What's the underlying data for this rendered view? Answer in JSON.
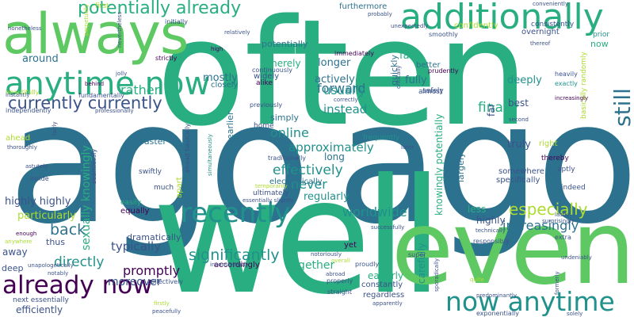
{
  "palette": {
    "dark_purple": "#440154",
    "deep_blue": "#3b528b",
    "teal_blue": "#2c728e",
    "teal": "#21918c",
    "sea_green": "#28ae80",
    "green": "#5ec962",
    "lime": "#addc30",
    "yellow": "#d5e21a"
  },
  "words": [
    {
      "text": "often",
      "color": "#28ae80"
    },
    {
      "text": "ago",
      "color": "#2c728e"
    },
    {
      "text": "ago",
      "color": "#2c728e"
    },
    {
      "text": "well",
      "color": "#28ae80"
    },
    {
      "text": "even",
      "color": "#5ec962"
    },
    {
      "text": "always",
      "color": "#5ec962"
    },
    {
      "text": "additionally",
      "color": "#28ae80"
    },
    {
      "text": "anytime now",
      "color": "#28ae80"
    },
    {
      "text": "recently",
      "color": "#21918c"
    },
    {
      "text": "now anytime",
      "color": "#21918c"
    },
    {
      "text": "already now",
      "color": "#440154"
    },
    {
      "text": "potentially already",
      "color": "#28ae80"
    },
    {
      "text": "currently currently",
      "color": "#3b528b"
    },
    {
      "text": "still",
      "color": "#2c728e"
    },
    {
      "text": "significantly",
      "color": "#21918c"
    },
    {
      "text": "especially",
      "color": "#addc30"
    },
    {
      "text": "increasingly",
      "color": "#2c728e"
    },
    {
      "text": "back",
      "color": "#2c728e"
    },
    {
      "text": "effectively",
      "color": "#21918c"
    },
    {
      "text": "finally",
      "color": "#28ae80"
    },
    {
      "text": "directly",
      "color": "#21918c"
    },
    {
      "text": "worldwide",
      "color": "#21918c"
    },
    {
      "text": "approximately",
      "color": "#21918c"
    },
    {
      "text": "online",
      "color": "#21918c"
    },
    {
      "text": "forward",
      "color": "#2c728e"
    },
    {
      "text": "rather",
      "color": "#28ae80"
    },
    {
      "text": "never",
      "color": "#21918c"
    },
    {
      "text": "instead",
      "color": "#21918c"
    },
    {
      "text": "usually",
      "color": "#21918c"
    },
    {
      "text": "actively",
      "color": "#2c728e"
    },
    {
      "text": "longer",
      "color": "#2c728e"
    },
    {
      "text": "fully",
      "color": "#2c728e"
    },
    {
      "text": "fast",
      "color": "#28ae80"
    },
    {
      "text": "promptly",
      "color": "#440154"
    },
    {
      "text": "typically",
      "color": "#3b528b"
    },
    {
      "text": "moreover",
      "color": "#3b528b"
    },
    {
      "text": "together",
      "color": "#28ae80"
    },
    {
      "text": "regularly",
      "color": "#21918c"
    },
    {
      "text": "particularly",
      "color": "#addc30"
    },
    {
      "text": "highly highly",
      "color": "#3b528b"
    },
    {
      "text": "around",
      "color": "#2c728e"
    },
    {
      "text": "mostly",
      "color": "#2c728e"
    },
    {
      "text": "merely",
      "color": "#28ae80"
    },
    {
      "text": "sexually knowingly",
      "color": "#28ae80"
    },
    {
      "text": "knowingly potentially",
      "color": "#28ae80"
    },
    {
      "text": "truly",
      "color": "#3b528b"
    },
    {
      "text": "best",
      "color": "#3b528b"
    },
    {
      "text": "far",
      "color": "#3b528b"
    },
    {
      "text": "eagerly",
      "color": "#28ae80"
    },
    {
      "text": "carefully",
      "color": "#21918c"
    },
    {
      "text": "highly",
      "color": "#3b528b"
    },
    {
      "text": "less",
      "color": "#28ae80"
    },
    {
      "text": "dramatically",
      "color": "#3b528b"
    },
    {
      "text": "efficiently",
      "color": "#3b528b"
    },
    {
      "text": "next essentially",
      "color": "#3b528b"
    },
    {
      "text": "away",
      "color": "#3b528b"
    },
    {
      "text": "deep",
      "color": "#3b528b"
    },
    {
      "text": "thus",
      "color": "#3b528b"
    },
    {
      "text": "simply",
      "color": "#2c728e"
    },
    {
      "text": "long",
      "color": "#2c728e"
    },
    {
      "text": "faster",
      "color": "#2c728e"
    },
    {
      "text": "earlier",
      "color": "#2c728e"
    },
    {
      "text": "ahead",
      "color": "#addc30"
    },
    {
      "text": "closely",
      "color": "#2c728e"
    },
    {
      "text": "widely",
      "color": "#3b528b"
    },
    {
      "text": "alike",
      "color": "#440154"
    },
    {
      "text": "quickly",
      "color": "#2c728e"
    },
    {
      "text": "deeply",
      "color": "#21918c"
    },
    {
      "text": "now",
      "color": "#28ae80"
    },
    {
      "text": "potentially",
      "color": "#2c728e"
    },
    {
      "text": "overnight",
      "color": "#3b528b"
    },
    {
      "text": "furthermore",
      "color": "#2c728e"
    },
    {
      "text": "confidently",
      "color": "#addc30"
    },
    {
      "text": "consistently",
      "color": "#3b528b"
    },
    {
      "text": "immediately",
      "color": "#440154"
    },
    {
      "text": "continuously",
      "color": "#3b528b"
    },
    {
      "text": "electronically",
      "color": "#2c728e"
    },
    {
      "text": "frequently",
      "color": "#21918c"
    },
    {
      "text": "yet",
      "color": "#440154"
    },
    {
      "text": "constantly",
      "color": "#3b528b"
    },
    {
      "text": "regardless",
      "color": "#3b528b"
    },
    {
      "text": "easily",
      "color": "#28ae80"
    },
    {
      "text": "equally",
      "color": "#440154"
    },
    {
      "text": "much",
      "color": "#3b528b"
    },
    {
      "text": "swiftly",
      "color": "#3b528b"
    },
    {
      "text": "apart",
      "color": "#addc30"
    },
    {
      "text": "ultimately",
      "color": "#3b528b"
    },
    {
      "text": "accordingly",
      "color": "#440154"
    },
    {
      "text": "collectively",
      "color": "#3b528b"
    },
    {
      "text": "somewhere",
      "color": "#3b528b"
    },
    {
      "text": "specifically",
      "color": "#3b528b"
    },
    {
      "text": "thereby",
      "color": "#440154"
    },
    {
      "text": "aptly",
      "color": "#3b528b"
    },
    {
      "text": "indeed",
      "color": "#3b528b"
    },
    {
      "text": "largely",
      "color": "#2c728e"
    },
    {
      "text": "right",
      "color": "#addc30"
    },
    {
      "text": "previously",
      "color": "#3b528b"
    },
    {
      "text": "home",
      "color": "#3b528b"
    },
    {
      "text": "correctly",
      "color": "#3b528b"
    },
    {
      "text": "almost",
      "color": "#3b528b"
    },
    {
      "text": "better",
      "color": "#2c728e"
    },
    {
      "text": "safely",
      "color": "#3b528b"
    },
    {
      "text": "prudently",
      "color": "#440154"
    },
    {
      "text": "heavily",
      "color": "#3b528b"
    },
    {
      "text": "exactly",
      "color": "#21918c"
    },
    {
      "text": "smoothly",
      "color": "#3b528b"
    },
    {
      "text": "prior",
      "color": "#21918c"
    },
    {
      "text": "basically randomly",
      "color": "#addc30"
    },
    {
      "text": "strictly",
      "color": "#440154"
    },
    {
      "text": "fundamentally",
      "color": "#3b528b"
    },
    {
      "text": "initially",
      "color": "#3b528b"
    },
    {
      "text": "beautifully",
      "color": "#addc30"
    },
    {
      "text": "instantly",
      "color": "#3b528b"
    },
    {
      "text": "independently",
      "color": "#3b528b"
    },
    {
      "text": "professionally",
      "color": "#3b528b"
    },
    {
      "text": "behind",
      "color": "#440154"
    },
    {
      "text": "thoroughly",
      "color": "#3b528b"
    },
    {
      "text": "astutely",
      "color": "#3b528b"
    },
    {
      "text": "seamlessly",
      "color": "#3b528b"
    },
    {
      "text": "inside",
      "color": "#3b528b"
    },
    {
      "text": "enough",
      "color": "#440154"
    },
    {
      "text": "anywhere",
      "color": "#addc30"
    },
    {
      "text": "notably",
      "color": "#3b528b"
    },
    {
      "text": "unapologetically",
      "color": "#3b528b"
    },
    {
      "text": "traditionally",
      "color": "#3b528b"
    },
    {
      "text": "ahead basically",
      "color": "#3b528b"
    },
    {
      "text": "simultaneously",
      "color": "#21918c"
    },
    {
      "text": "notoriously",
      "color": "#3b528b"
    },
    {
      "text": "proudly",
      "color": "#3b528b"
    },
    {
      "text": "successfully",
      "color": "#3b528b"
    },
    {
      "text": "straight",
      "color": "#3b528b"
    },
    {
      "text": "properly",
      "color": "#3b528b"
    },
    {
      "text": "apparently",
      "color": "#3b528b"
    },
    {
      "text": "super",
      "color": "#3b528b"
    },
    {
      "text": "later",
      "color": "#3b528b"
    },
    {
      "text": "responsibly",
      "color": "#3b528b"
    },
    {
      "text": "technically",
      "color": "#3b528b"
    },
    {
      "text": "surprisingly",
      "color": "#3b528b"
    },
    {
      "text": "lastly",
      "color": "#3b528b"
    },
    {
      "text": "extra",
      "color": "#3b528b"
    },
    {
      "text": "undeniably",
      "color": "#3b528b"
    },
    {
      "text": "solely",
      "color": "#3b528b"
    },
    {
      "text": "formerly",
      "color": "#3b528b"
    },
    {
      "text": "exponentially",
      "color": "#3b528b"
    },
    {
      "text": "predominantly",
      "color": "#3b528b"
    },
    {
      "text": "sporadically",
      "color": "#3b528b"
    },
    {
      "text": "quite",
      "color": "#addc30"
    },
    {
      "text": "inconsistently",
      "color": "#3b528b"
    },
    {
      "text": "overall",
      "color": "#addc30"
    },
    {
      "text": "peacefully",
      "color": "#3b528b"
    },
    {
      "text": "firstly",
      "color": "#addc30"
    },
    {
      "text": "first",
      "color": "#addc30"
    },
    {
      "text": "perpetually",
      "color": "#addc30"
    },
    {
      "text": "nonetheless",
      "color": "#3b528b"
    },
    {
      "text": "nevertheless",
      "color": "#3b528b"
    },
    {
      "text": "jolly",
      "color": "#3b528b"
    },
    {
      "text": "relatively",
      "color": "#3b528b"
    },
    {
      "text": "high",
      "color": "#440154"
    },
    {
      "text": "probably",
      "color": "#3b528b"
    },
    {
      "text": "unexpectedly",
      "color": "#3b528b"
    },
    {
      "text": "conveniently",
      "color": "#3b528b"
    },
    {
      "text": "thereof",
      "color": "#3b528b"
    },
    {
      "text": "critically",
      "color": "#3b528b"
    },
    {
      "text": "second",
      "color": "#3b528b"
    },
    {
      "text": "fairly",
      "color": "#3b528b"
    },
    {
      "text": "temporarily",
      "color": "#addc30"
    },
    {
      "text": "essentially slightly",
      "color": "#3b528b"
    },
    {
      "text": "increasingly",
      "color": "#440154"
    },
    {
      "text": "abroad",
      "color": "#3b528b"
    }
  ]
}
